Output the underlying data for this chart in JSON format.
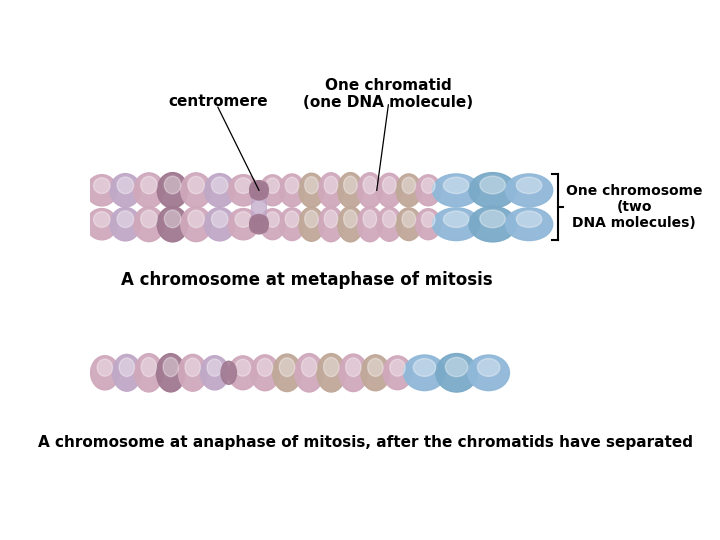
{
  "background_color": "#ffffff",
  "label_centromere": "centromere",
  "label_chromatid": "One chromatid\n(one DNA molecule)",
  "label_chromosome": "One chromosome\n(two\nDNA molecules)",
  "label_metaphase": "A chromosome at metaphase of mitosis",
  "label_anaphase": "A chromosome at anaphase of mitosis, after the chromatids have separated",
  "c_pink_light": "#e8c8d4",
  "c_pink_mid": "#d0a8bc",
  "c_pink_dark": "#b890a8",
  "c_mauve": "#a07890",
  "c_lavender": "#c0a8c8",
  "c_blue": "#90b8d8",
  "c_blue2": "#7aaac8",
  "c_tan": "#c0a898",
  "figure_width": 7.2,
  "figure_height": 5.4,
  "dpi": 100
}
